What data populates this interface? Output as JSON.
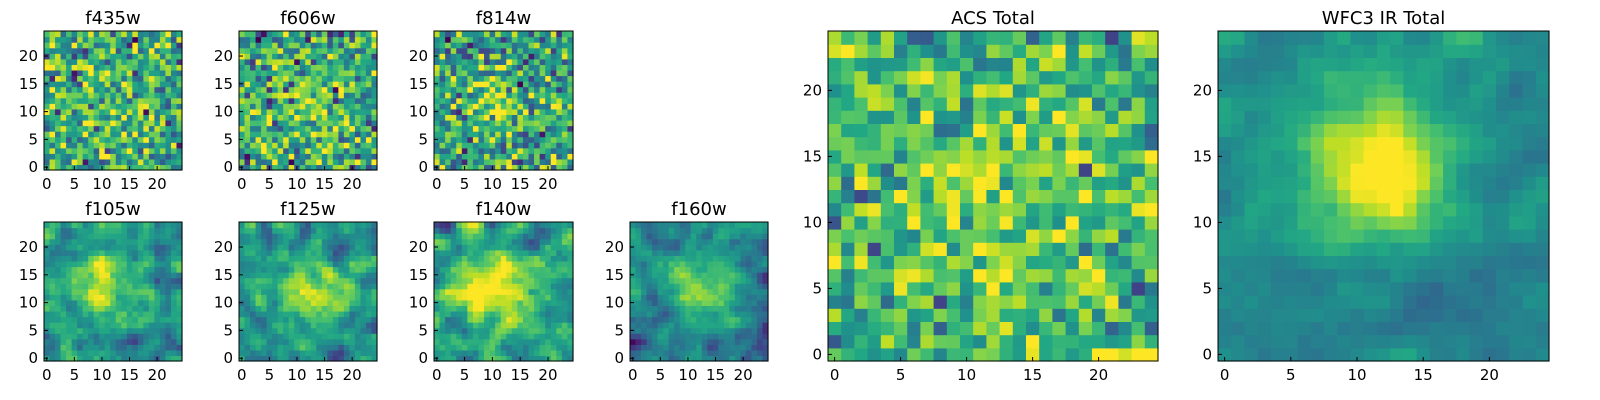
{
  "chart_data": {
    "type": "heatmap",
    "colormap": "viridis",
    "grid": false,
    "panels": [
      {
        "title": "f435w",
        "xticks": [
          "0",
          "5",
          "10",
          "15",
          "20"
        ],
        "yticks": [
          "0",
          "5",
          "10",
          "15",
          "20"
        ],
        "xlim": [
          0,
          24
        ],
        "ylim": [
          0,
          24
        ]
      },
      {
        "title": "f606w",
        "xticks": [
          "0",
          "5",
          "10",
          "15",
          "20"
        ],
        "yticks": [
          "0",
          "5",
          "10",
          "15",
          "20"
        ],
        "xlim": [
          0,
          24
        ],
        "ylim": [
          0,
          24
        ]
      },
      {
        "title": "f814w",
        "xticks": [
          "0",
          "5",
          "10",
          "15",
          "20"
        ],
        "yticks": [
          "0",
          "5",
          "10",
          "15",
          "20"
        ],
        "xlim": [
          0,
          24
        ],
        "ylim": [
          0,
          24
        ]
      },
      {
        "title": "f105w",
        "xticks": [
          "0",
          "5",
          "10",
          "15",
          "20"
        ],
        "yticks": [
          "0",
          "5",
          "10",
          "15",
          "20"
        ],
        "xlim": [
          0,
          24
        ],
        "ylim": [
          0,
          24
        ]
      },
      {
        "title": "f125w",
        "xticks": [
          "0",
          "5",
          "10",
          "15",
          "20"
        ],
        "yticks": [
          "0",
          "5",
          "10",
          "15",
          "20"
        ],
        "xlim": [
          0,
          24
        ],
        "ylim": [
          0,
          24
        ]
      },
      {
        "title": "f140w",
        "xticks": [
          "0",
          "5",
          "10",
          "15",
          "20"
        ],
        "yticks": [
          "0",
          "5",
          "10",
          "15",
          "20"
        ],
        "xlim": [
          0,
          24
        ],
        "ylim": [
          0,
          24
        ]
      },
      {
        "title": "f160w",
        "xticks": [
          "0",
          "5",
          "10",
          "15",
          "20"
        ],
        "yticks": [
          "0",
          "5",
          "10",
          "15",
          "20"
        ],
        "xlim": [
          0,
          24
        ],
        "ylim": [
          0,
          24
        ]
      },
      {
        "title": "ACS Total",
        "xticks": [
          "0",
          "5",
          "10",
          "15",
          "20"
        ],
        "yticks": [
          "0",
          "5",
          "10",
          "15",
          "20"
        ],
        "xlim": [
          0,
          24
        ],
        "ylim": [
          0,
          24
        ]
      },
      {
        "title": "WFC3 IR Total",
        "xticks": [
          "0",
          "5",
          "10",
          "15",
          "20"
        ],
        "yticks": [
          "0",
          "5",
          "10",
          "15",
          "20"
        ],
        "xlim": [
          0,
          24
        ],
        "ylim": [
          0,
          24
        ]
      }
    ]
  }
}
